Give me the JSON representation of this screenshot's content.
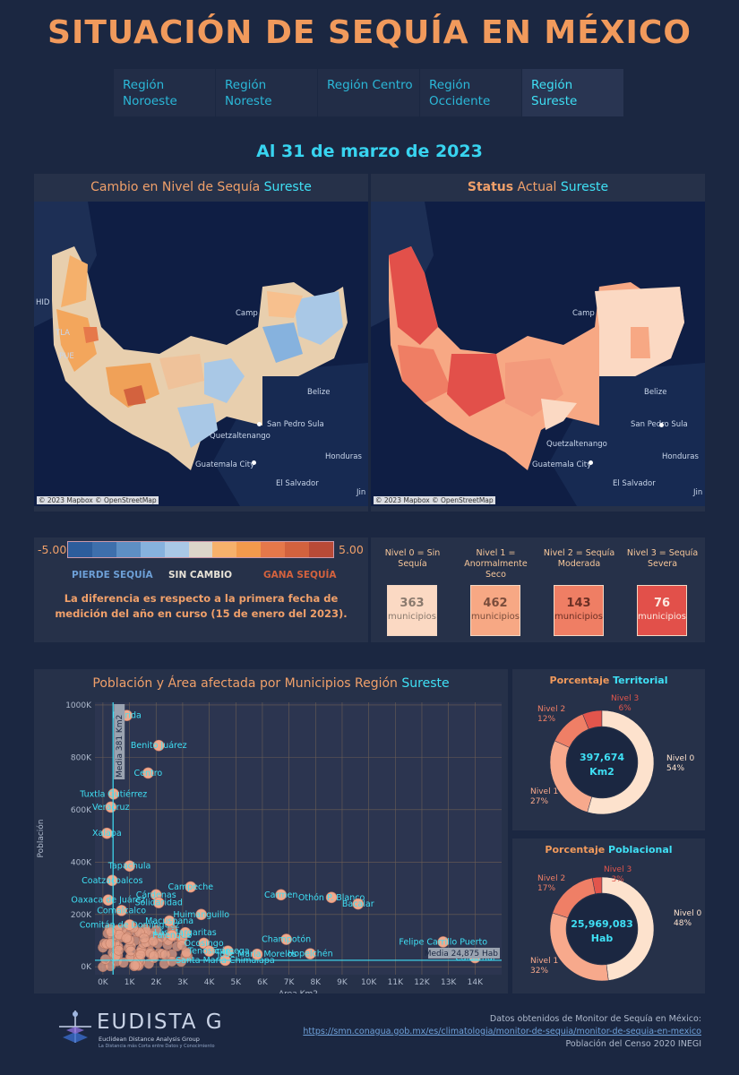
{
  "title": "SITUACIÓN DE SEQUÍA EN MÉXICO",
  "tabs": [
    {
      "line1": "Región",
      "line2": "Noroeste"
    },
    {
      "line1": "Región",
      "line2": "Noreste"
    },
    {
      "line1": "Región Centro",
      "line2": ""
    },
    {
      "line1": "Región",
      "line2": "Occidente"
    },
    {
      "line1": "Región",
      "line2": "Sureste"
    }
  ],
  "date": "Al 31 de marzo de 2023",
  "maps": {
    "left": {
      "title_a": "Cambio en Nivel de Sequía ",
      "title_b": "Sureste"
    },
    "right": {
      "title_a": "Status",
      "title_b": " Actual ",
      "title_c": "Sureste"
    },
    "attribution": "© 2023 Mapbox © OpenStreetMap",
    "cities": {
      "belize": "Belize",
      "sanpedro": "San Pedro Sula",
      "guatemala": "Guatemala City",
      "honduras": "Honduras",
      "elsalvador": "El Salvador",
      "quetzaltenango": "Quetzaltenango",
      "camp": "Camp",
      "jin": "Jin",
      "pue": "PUE",
      "tla": "TLA",
      "hid": "HID"
    }
  },
  "legend": {
    "min": "-5.00",
    "max": "5.00",
    "colors": [
      "#2d5d9c",
      "#3e6fac",
      "#5e8fc4",
      "#86b2de",
      "#a9c8e6",
      "#dcd5c9",
      "#f7b16b",
      "#f39a4c",
      "#e6784a",
      "#d3623e",
      "#b84a37"
    ],
    "pierde": "PIERDE SEQUÍA",
    "sin": "SIN CAMBIO",
    "gana": "GANA SEQUÍA",
    "note": "La diferencia es respecto a la primera fecha de medición del año en curso (15 de enero del 2023)."
  },
  "levels": [
    {
      "head1": "Nivel 0 = Sin Sequía",
      "head2": "",
      "count": "363",
      "unit": "municipios",
      "color": "#fbd9c3",
      "text": "#8a7a6e"
    },
    {
      "head1": "Nivel 1 =",
      "head2": "Anormalmente Seco",
      "count": "462",
      "unit": "municipios",
      "color": "#f7a884",
      "text": "#7a4d3c"
    },
    {
      "head1": "Nivel 2 = Sequía",
      "head2": "Moderada",
      "count": "143",
      "unit": "municipios",
      "color": "#ef7e64",
      "text": "#6b2f24"
    },
    {
      "head1": "Nivel 3 = Sequía",
      "head2": "Severa",
      "count": "76",
      "unit": "municipios",
      "color": "#e2504a",
      "text": "#fbe7df"
    }
  ],
  "scatter": {
    "title_a": "Población y Área afectada por Municipios Región ",
    "title_b": "Sureste",
    "xlabel": "Area Km2",
    "ylabel": "Población",
    "media_area": "Media 381 Km2",
    "media_pop": "Media 24,875 Hab",
    "xticks": [
      "0K",
      "1K",
      "2K",
      "3K",
      "4K",
      "5K",
      "6K",
      "7K",
      "8K",
      "9K",
      "10K",
      "11K",
      "12K",
      "13K",
      "14K"
    ],
    "yticks": [
      "0K",
      "200K",
      "400K",
      "600K",
      "800K",
      "1000K"
    ]
  },
  "chart_data": [
    {
      "type": "scatter",
      "title": "Población y Área afectada por Municipios Región Sureste",
      "xlabel": "Area Km2",
      "ylabel": "Población",
      "xlim": [
        -300,
        15000
      ],
      "ylim": [
        -30000,
        1010000
      ],
      "grid": true,
      "mean_x": 381,
      "mean_y": 24875,
      "points": [
        {
          "label": "Mérida",
          "x": 900,
          "y": 960000
        },
        {
          "label": "Benito Juárez",
          "x": 2100,
          "y": 845000
        },
        {
          "label": "Centro",
          "x": 1700,
          "y": 740000
        },
        {
          "label": "Tuxtla Gutiérrez",
          "x": 400,
          "y": 660000
        },
        {
          "label": "Veracruz",
          "x": 300,
          "y": 610000
        },
        {
          "label": "Xalapa",
          "x": 150,
          "y": 510000
        },
        {
          "label": "Tapachula",
          "x": 1000,
          "y": 385000
        },
        {
          "label": "Coatzacoalcos",
          "x": 350,
          "y": 330000
        },
        {
          "label": "Carmen",
          "x": 6700,
          "y": 275000
        },
        {
          "label": "Othón P. Blanco",
          "x": 8600,
          "y": 265000
        },
        {
          "label": "Campeche",
          "x": 3300,
          "y": 305000
        },
        {
          "label": "Cárdenas",
          "x": 2000,
          "y": 275000
        },
        {
          "label": "Solidaridad",
          "x": 2100,
          "y": 245000
        },
        {
          "label": "Oaxaca de Juárez",
          "x": 200,
          "y": 255000
        },
        {
          "label": "Bacalar",
          "x": 9600,
          "y": 240000
        },
        {
          "label": "Comalcalco",
          "x": 700,
          "y": 215000
        },
        {
          "label": "Huimanguillo",
          "x": 3700,
          "y": 200000
        },
        {
          "label": "Comitán de Domínguez",
          "x": 1000,
          "y": 160000
        },
        {
          "label": "Macuspana",
          "x": 2500,
          "y": 175000
        },
        {
          "label": "Las Margaritas",
          "x": 3100,
          "y": 130000
        },
        {
          "label": "Champotón",
          "x": 6900,
          "y": 105000
        },
        {
          "label": "Felipe Carrillo Puerto",
          "x": 12800,
          "y": 95000
        },
        {
          "label": "Hopelchén",
          "x": 7800,
          "y": 50000
        },
        {
          "label": "Calakmul",
          "x": 14000,
          "y": 35000
        },
        {
          "label": "Escárcega",
          "x": 4700,
          "y": 60000
        },
        {
          "label": "Santa María Chimalapa",
          "x": 4600,
          "y": 25000
        },
        {
          "label": "José María Morelos",
          "x": 5800,
          "y": 48000
        },
        {
          "label": "Ocosingo",
          "x": 3800,
          "y": 90000
        },
        {
          "label": "Palenque",
          "x": 2600,
          "y": 120000
        },
        {
          "label": "Tenosique",
          "x": 4000,
          "y": 60000
        }
      ]
    },
    {
      "type": "pie",
      "title": "Porcentaje Territorial",
      "center_value": "397,674",
      "center_unit": "Km2",
      "labels": [
        "Nivel 0",
        "Nivel 1",
        "Nivel 2",
        "Nivel 3"
      ],
      "values": [
        54,
        27,
        12,
        6
      ],
      "colors": [
        "#fde2cd",
        "#f7a98c",
        "#ef7f66",
        "#e2554c"
      ]
    },
    {
      "type": "pie",
      "title": "Porcentaje Poblacional",
      "center_value": "25,969,083",
      "center_unit": "Hab",
      "labels": [
        "Nivel 0",
        "Nivel 1",
        "Nivel 2",
        "Nivel 3"
      ],
      "values": [
        48,
        32,
        17,
        3
      ],
      "colors": [
        "#fde2cd",
        "#f7a98c",
        "#ef7f66",
        "#e2554c"
      ]
    }
  ],
  "donut_titles": {
    "territorial_a": "Porcentaje ",
    "territorial_b": "Territorial",
    "poblacional_a": "Porcentaje ",
    "poblacional_b": "Poblacional",
    "terr_labels": {
      "n0": "Nivel 0",
      "n0p": "54%",
      "n1": "Nivel 1",
      "n1p": "27%",
      "n2": "Nivel 2",
      "n2p": "12%",
      "n3": "Nivel 3",
      "n3p": "6%"
    },
    "pob_labels": {
      "n0": "Nivel 0",
      "n0p": "48%",
      "n1": "Nivel 1",
      "n1p": "32%",
      "n2": "Nivel 2",
      "n2p": "17%",
      "n3": "Nivel 3",
      "n3p": "3%"
    }
  },
  "footer": {
    "logo": "EUDISTA G",
    "logo_sub": "Euclidean Distance Analysis Group",
    "logo_tag": "La Distancia más Corta entre Datos y Conocimiento",
    "source": "Datos obtenidos de Monitor de Sequía en México:",
    "url": "https://smn.conagua.gob.mx/es/climatologia/monitor-de-sequia/monitor-de-sequia-en-mexico",
    "census": "Población del Censo 2020 INEGI"
  }
}
